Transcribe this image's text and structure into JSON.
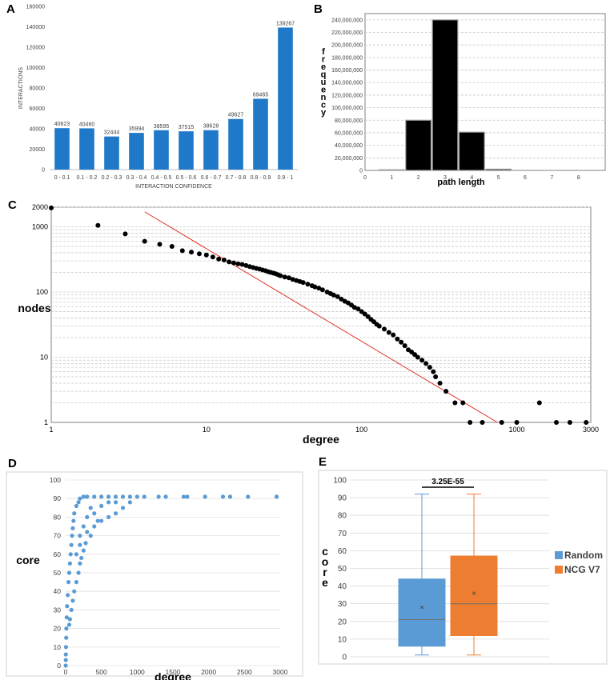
{
  "panels": {
    "A": "A",
    "B": "B",
    "C": "C",
    "D": "D",
    "E": "E"
  },
  "chart_data": [
    {
      "panel": "A",
      "type": "bar",
      "categories": [
        "0 - 0.1",
        "0.1 - 0.2",
        "0.2 - 0.3",
        "0.3 - 0.4",
        "0.4 - 0.5",
        "0.5 - 0.6",
        "0.6 - 0.7",
        "0.7 - 0.8",
        "0.8 - 0.9",
        "0.9 - 1"
      ],
      "values": [
        40623,
        40460,
        32444,
        35994,
        38595,
        37515,
        38628,
        49627,
        69465,
        139267
      ],
      "xlabel": "INTERACTION CONFIDENCE",
      "ylabel": "INTERACTIONS",
      "ylim": [
        0,
        160000
      ],
      "yticks": [
        0,
        20000,
        40000,
        60000,
        80000,
        100000,
        120000,
        140000,
        160000
      ],
      "color": "#1f78c8"
    },
    {
      "panel": "B",
      "type": "bar",
      "categories": [
        "1",
        "2",
        "3",
        "4",
        "5"
      ],
      "x": [
        1,
        2,
        3,
        4,
        5
      ],
      "values": [
        1000000,
        80000000,
        240000000,
        61000000,
        2000000
      ],
      "xlabel": "path length",
      "ylabel": "frequency",
      "xlim": [
        0,
        9
      ],
      "xticks": [
        0,
        1,
        2,
        3,
        4,
        5,
        6,
        7,
        8
      ],
      "ylim": [
        0,
        250000000
      ],
      "yticks": [
        0,
        20000000,
        40000000,
        60000000,
        80000000,
        100000000,
        120000000,
        140000000,
        160000000,
        180000000,
        200000000,
        220000000,
        240000000
      ],
      "ytick_labels": [
        "0",
        "20,000,000",
        "40,000,000",
        "60,000,000",
        "80,000,000",
        "100,000,000",
        "120,000,000",
        "140,000,000",
        "160,000,000",
        "180,000,000",
        "200,000,000",
        "220,000,000",
        "240,000,000"
      ],
      "color": "#000000"
    },
    {
      "panel": "C",
      "type": "scatter",
      "xlabel": "degree",
      "ylabel": "nodes",
      "xscale": "log",
      "yscale": "log",
      "xlim": [
        1,
        3000
      ],
      "ylim": [
        1,
        2000
      ],
      "xticks": [
        1,
        10,
        100,
        1000,
        3000
      ],
      "yticks": [
        1,
        10,
        100,
        1000,
        2000
      ],
      "points": [
        [
          1,
          1950
        ],
        [
          2,
          1050
        ],
        [
          3,
          780
        ],
        [
          4,
          600
        ],
        [
          5,
          540
        ],
        [
          6,
          500
        ],
        [
          7,
          430
        ],
        [
          8,
          410
        ],
        [
          9,
          385
        ],
        [
          10,
          370
        ],
        [
          11,
          345
        ],
        [
          12,
          320
        ],
        [
          13,
          310
        ],
        [
          14,
          290
        ],
        [
          15,
          280
        ],
        [
          16,
          270
        ],
        [
          17,
          265
        ],
        [
          18,
          255
        ],
        [
          19,
          245
        ],
        [
          20,
          238
        ],
        [
          21,
          230
        ],
        [
          22,
          225
        ],
        [
          23,
          218
        ],
        [
          24,
          212
        ],
        [
          25,
          205
        ],
        [
          26,
          200
        ],
        [
          27,
          195
        ],
        [
          28,
          190
        ],
        [
          29,
          184
        ],
        [
          30,
          178
        ],
        [
          32,
          170
        ],
        [
          34,
          165
        ],
        [
          36,
          156
        ],
        [
          38,
          150
        ],
        [
          40,
          145
        ],
        [
          42,
          140
        ],
        [
          45,
          132
        ],
        [
          48,
          125
        ],
        [
          50,
          120
        ],
        [
          53,
          115
        ],
        [
          56,
          108
        ],
        [
          60,
          100
        ],
        [
          63,
          95
        ],
        [
          66,
          90
        ],
        [
          70,
          85
        ],
        [
          74,
          78
        ],
        [
          78,
          72
        ],
        [
          82,
          68
        ],
        [
          86,
          63
        ],
        [
          90,
          58
        ],
        [
          95,
          55
        ],
        [
          100,
          50
        ],
        [
          105,
          46
        ],
        [
          110,
          42
        ],
        [
          115,
          38
        ],
        [
          120,
          35
        ],
        [
          125,
          32
        ],
        [
          130,
          30
        ],
        [
          140,
          27
        ],
        [
          150,
          24
        ],
        [
          160,
          22
        ],
        [
          170,
          19
        ],
        [
          180,
          17
        ],
        [
          190,
          15
        ],
        [
          200,
          13
        ],
        [
          210,
          12
        ],
        [
          220,
          11
        ],
        [
          230,
          10
        ],
        [
          245,
          9
        ],
        [
          260,
          8
        ],
        [
          275,
          7
        ],
        [
          290,
          6
        ],
        [
          300,
          5
        ],
        [
          320,
          4
        ],
        [
          350,
          3
        ],
        [
          400,
          2
        ],
        [
          450,
          2
        ],
        [
          500,
          1
        ],
        [
          600,
          1
        ],
        [
          800,
          1
        ],
        [
          1000,
          1
        ],
        [
          1400,
          2
        ],
        [
          1800,
          1
        ],
        [
          2200,
          1
        ],
        [
          2800,
          1
        ]
      ],
      "fit_line": [
        [
          4,
          1700
        ],
        [
          750,
          1
        ]
      ],
      "point_color": "#000000",
      "line_color": "#e03020"
    },
    {
      "panel": "D",
      "type": "scatter",
      "xlabel": "degree",
      "ylabel": "core",
      "xlim": [
        0,
        3000
      ],
      "ylim": [
        0,
        100
      ],
      "xticks": [
        0,
        500,
        1000,
        1500,
        2000,
        2500,
        3000
      ],
      "yticks": [
        0,
        10,
        20,
        30,
        40,
        50,
        60,
        70,
        80,
        90,
        100
      ],
      "points": [
        [
          1,
          0
        ],
        [
          2,
          3
        ],
        [
          3,
          6
        ],
        [
          5,
          10
        ],
        [
          8,
          15
        ],
        [
          10,
          20
        ],
        [
          15,
          26
        ],
        [
          20,
          32
        ],
        [
          30,
          38
        ],
        [
          40,
          45
        ],
        [
          50,
          50
        ],
        [
          60,
          55
        ],
        [
          70,
          60
        ],
        [
          80,
          65
        ],
        [
          90,
          70
        ],
        [
          100,
          74
        ],
        [
          110,
          78
        ],
        [
          120,
          82
        ],
        [
          150,
          86
        ],
        [
          180,
          88
        ],
        [
          200,
          90
        ],
        [
          250,
          91
        ],
        [
          300,
          91
        ],
        [
          400,
          91
        ],
        [
          500,
          91
        ],
        [
          600,
          91
        ],
        [
          700,
          91
        ],
        [
          800,
          91
        ],
        [
          900,
          91
        ],
        [
          1000,
          91
        ],
        [
          1100,
          91
        ],
        [
          1300,
          91
        ],
        [
          1400,
          91
        ],
        [
          1650,
          91
        ],
        [
          1700,
          91
        ],
        [
          1950,
          91
        ],
        [
          2200,
          91
        ],
        [
          2300,
          91
        ],
        [
          2550,
          91
        ],
        [
          2950,
          91
        ],
        [
          150,
          60
        ],
        [
          200,
          70
        ],
        [
          250,
          75
        ],
        [
          300,
          80
        ],
        [
          350,
          85
        ],
        [
          400,
          82
        ],
        [
          500,
          86
        ],
        [
          600,
          88
        ],
        [
          700,
          88
        ],
        [
          120,
          40
        ],
        [
          150,
          45
        ],
        [
          200,
          55
        ],
        [
          250,
          62
        ],
        [
          100,
          35
        ],
        [
          80,
          30
        ],
        [
          60,
          25
        ],
        [
          50,
          22
        ],
        [
          200,
          65
        ],
        [
          300,
          72
        ],
        [
          400,
          75
        ],
        [
          500,
          78
        ],
        [
          600,
          80
        ],
        [
          700,
          82
        ],
        [
          800,
          85
        ],
        [
          900,
          88
        ],
        [
          180,
          50
        ],
        [
          220,
          58
        ],
        [
          280,
          66
        ],
        [
          350,
          70
        ],
        [
          450,
          78
        ]
      ],
      "color": "#5b9bd5"
    },
    {
      "panel": "E",
      "type": "box",
      "ylabel": "core",
      "ylim": [
        0,
        100
      ],
      "yticks": [
        0,
        10,
        20,
        30,
        40,
        50,
        60,
        70,
        80,
        90,
        100
      ],
      "annotation": "3.25E-55",
      "series": [
        {
          "name": "Random",
          "min": 1,
          "q1": 6,
          "median": 21,
          "q3": 44,
          "max": 92,
          "mean": 28,
          "color": "#5b9bd5"
        },
        {
          "name": "NCG V7",
          "min": 1,
          "q1": 12,
          "median": 30,
          "q3": 57,
          "max": 92,
          "mean": 36,
          "color": "#ed7d31"
        }
      ],
      "legend_position": "right"
    }
  ]
}
